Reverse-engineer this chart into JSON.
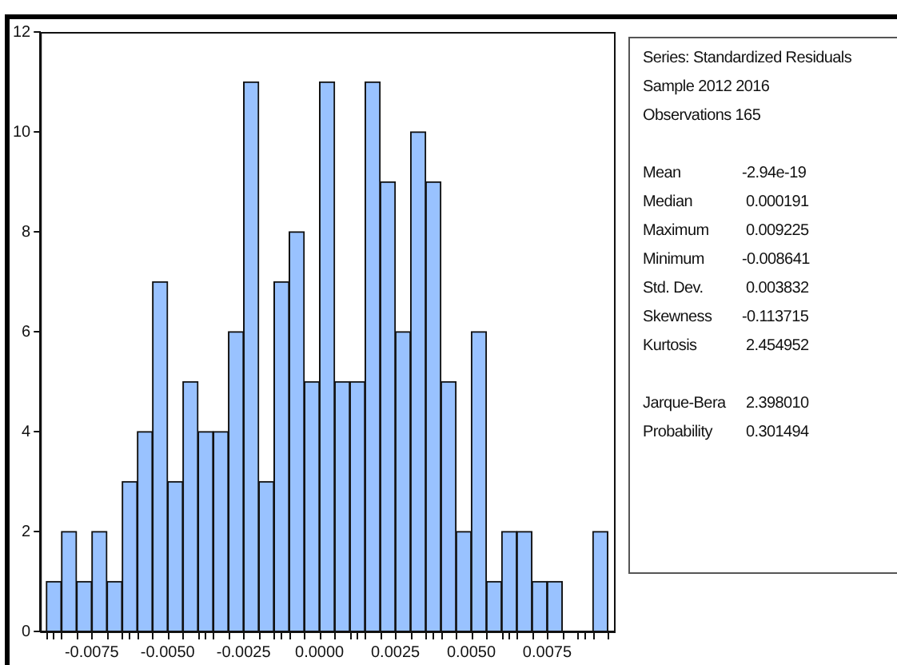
{
  "chart_data": {
    "type": "histogram",
    "bins": [
      -0.009,
      -0.0085,
      -0.008,
      -0.0075,
      -0.007,
      -0.0065,
      -0.006,
      -0.0055,
      -0.005,
      -0.0045,
      -0.004,
      -0.0035,
      -0.003,
      -0.0025,
      -0.002,
      -0.0015,
      -0.001,
      -0.0005,
      0,
      0.0005,
      0.001,
      0.0015,
      0.002,
      0.0025,
      0.003,
      0.0035,
      0.004,
      0.0045,
      0.005,
      0.0055,
      0.006,
      0.0065,
      0.007,
      0.0075,
      0.008,
      0.0085,
      0.009,
      0.0095
    ],
    "values": [
      1,
      2,
      1,
      2,
      1,
      3,
      4,
      7,
      3,
      5,
      4,
      4,
      6,
      11,
      3,
      7,
      8,
      5,
      11,
      5,
      5,
      11,
      9,
      6,
      10,
      9,
      5,
      2,
      6,
      1,
      2,
      2,
      1,
      1,
      0,
      0,
      2
    ],
    "color": "#99c2ff",
    "xlim": [
      -0.0092,
      0.0097
    ],
    "xticks": [
      {
        "value": -0.0075,
        "label": "-0.0075"
      },
      {
        "value": -0.005,
        "label": "-0.0050"
      },
      {
        "value": -0.0025,
        "label": "-0.0025"
      },
      {
        "value": 0,
        "label": "0.0000"
      },
      {
        "value": 0.0025,
        "label": "0.0025"
      },
      {
        "value": 0.005,
        "label": "0.0050"
      },
      {
        "value": 0.0075,
        "label": "0.0075"
      }
    ],
    "ylim": [
      0,
      12
    ],
    "yticks": [
      0,
      2,
      4,
      6,
      8,
      10,
      12
    ],
    "grid": false,
    "legend": false,
    "annotations": [
      "Series: Standardized Residuals\nSample 2012 2016\nObservations 165",
      "Mean\t-2.94e-19\nMedian\t 0.000191\nMaximum\t 0.009225\nMinimum\t-0.008641\nStd. Dev.\t 0.003832\nSkewness\t-0.113715\nKurtosis\t 2.454952",
      "Jarque-Bera\t 2.398010\nProbability\t 0.301494"
    ]
  }
}
